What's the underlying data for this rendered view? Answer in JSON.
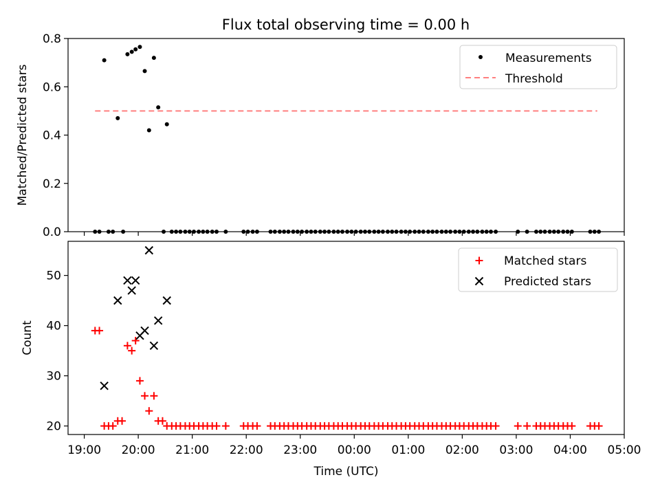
{
  "title": "Flux total observing time = 0.00 h",
  "chart_data": [
    {
      "type": "scatter",
      "ylabel": "Matched/Predicted stars",
      "xlabel": "",
      "ylim": [
        0,
        0.8
      ],
      "xlim_hours": [
        18.7,
        29.0
      ],
      "yticks": [
        {
          "v": 0.0,
          "label": "0.0"
        },
        {
          "v": 0.2,
          "label": "0.2"
        },
        {
          "v": 0.4,
          "label": "0.4"
        },
        {
          "v": 0.6,
          "label": "0.6"
        },
        {
          "v": 0.8,
          "label": "0.8"
        }
      ],
      "legend": {
        "placement": "upper right",
        "items": [
          "Measurements",
          "Threshold"
        ]
      },
      "threshold": {
        "name": "Threshold",
        "y": 0.5,
        "x_start": 19.2,
        "x_end": 28.5,
        "color": "#ff7f7f"
      },
      "series": [
        {
          "name": "Measurements",
          "color": "#000000",
          "points": [
            [
              19.37,
              0.71
            ],
            [
              19.8,
              0.735
            ],
            [
              19.88,
              0.745
            ],
            [
              19.95,
              0.755
            ],
            [
              20.03,
              0.765
            ],
            [
              20.12,
              0.665
            ],
            [
              20.29,
              0.72
            ],
            [
              19.62,
              0.47
            ],
            [
              20.37,
              0.515
            ],
            [
              20.2,
              0.42
            ],
            [
              20.53,
              0.445
            ],
            [
              19.2,
              0.0
            ],
            [
              19.28,
              0.0
            ],
            [
              19.45,
              0.0
            ],
            [
              19.53,
              0.0
            ],
            [
              19.72,
              0.0
            ],
            [
              20.47,
              0.0
            ],
            [
              20.62,
              0.0
            ],
            [
              20.7,
              0.0
            ],
            [
              20.78,
              0.0
            ],
            [
              20.87,
              0.0
            ],
            [
              20.95,
              0.0
            ],
            [
              21.03,
              0.0
            ],
            [
              21.12,
              0.0
            ],
            [
              21.2,
              0.0
            ],
            [
              21.28,
              0.0
            ],
            [
              21.37,
              0.0
            ],
            [
              21.45,
              0.0
            ],
            [
              21.62,
              0.0
            ],
            [
              21.95,
              0.0
            ],
            [
              22.03,
              0.0
            ],
            [
              22.12,
              0.0
            ],
            [
              22.2,
              0.0
            ],
            [
              22.45,
              0.0
            ],
            [
              22.53,
              0.0
            ],
            [
              22.62,
              0.0
            ],
            [
              22.7,
              0.0
            ],
            [
              22.78,
              0.0
            ],
            [
              22.87,
              0.0
            ],
            [
              22.95,
              0.0
            ],
            [
              23.03,
              0.0
            ],
            [
              23.12,
              0.0
            ],
            [
              23.2,
              0.0
            ],
            [
              23.28,
              0.0
            ],
            [
              23.37,
              0.0
            ],
            [
              23.45,
              0.0
            ],
            [
              23.53,
              0.0
            ],
            [
              23.62,
              0.0
            ],
            [
              23.7,
              0.0
            ],
            [
              23.78,
              0.0
            ],
            [
              23.87,
              0.0
            ],
            [
              23.95,
              0.0
            ],
            [
              24.03,
              0.0
            ],
            [
              24.12,
              0.0
            ],
            [
              24.2,
              0.0
            ],
            [
              24.28,
              0.0
            ],
            [
              24.37,
              0.0
            ],
            [
              24.45,
              0.0
            ],
            [
              24.53,
              0.0
            ],
            [
              24.62,
              0.0
            ],
            [
              24.7,
              0.0
            ],
            [
              24.78,
              0.0
            ],
            [
              24.87,
              0.0
            ],
            [
              24.95,
              0.0
            ],
            [
              25.03,
              0.0
            ],
            [
              25.12,
              0.0
            ],
            [
              25.2,
              0.0
            ],
            [
              25.28,
              0.0
            ],
            [
              25.37,
              0.0
            ],
            [
              25.45,
              0.0
            ],
            [
              25.53,
              0.0
            ],
            [
              25.62,
              0.0
            ],
            [
              25.7,
              0.0
            ],
            [
              25.78,
              0.0
            ],
            [
              25.87,
              0.0
            ],
            [
              25.95,
              0.0
            ],
            [
              26.03,
              0.0
            ],
            [
              26.12,
              0.0
            ],
            [
              26.2,
              0.0
            ],
            [
              26.28,
              0.0
            ],
            [
              26.37,
              0.0
            ],
            [
              26.45,
              0.0
            ],
            [
              26.53,
              0.0
            ],
            [
              26.62,
              0.0
            ],
            [
              27.03,
              0.0
            ],
            [
              27.2,
              0.0
            ],
            [
              27.37,
              0.0
            ],
            [
              27.45,
              0.0
            ],
            [
              27.53,
              0.0
            ],
            [
              27.62,
              0.0
            ],
            [
              27.7,
              0.0
            ],
            [
              27.78,
              0.0
            ],
            [
              27.87,
              0.0
            ],
            [
              27.95,
              0.0
            ],
            [
              28.03,
              0.0
            ],
            [
              28.37,
              0.0
            ],
            [
              28.45,
              0.0
            ],
            [
              28.53,
              0.0
            ]
          ]
        }
      ]
    },
    {
      "type": "scatter",
      "ylabel": "Count",
      "xlabel": "Time (UTC)",
      "ylim": [
        18.3,
        56.8
      ],
      "xlim_hours": [
        18.7,
        29.0
      ],
      "yticks": [
        {
          "v": 20,
          "label": "20"
        },
        {
          "v": 30,
          "label": "30"
        },
        {
          "v": 40,
          "label": "40"
        },
        {
          "v": 50,
          "label": "50"
        }
      ],
      "xticks": [
        {
          "v": 19,
          "label": "19:00"
        },
        {
          "v": 20,
          "label": "20:00"
        },
        {
          "v": 21,
          "label": "21:00"
        },
        {
          "v": 22,
          "label": "22:00"
        },
        {
          "v": 23,
          "label": "23:00"
        },
        {
          "v": 24,
          "label": "00:00"
        },
        {
          "v": 25,
          "label": "01:00"
        },
        {
          "v": 26,
          "label": "02:00"
        },
        {
          "v": 27,
          "label": "03:00"
        },
        {
          "v": 28,
          "label": "04:00"
        },
        {
          "v": 29,
          "label": "05:00"
        }
      ],
      "legend": {
        "placement": "upper right",
        "items": [
          "Matched stars",
          "Predicted stars"
        ]
      },
      "series": [
        {
          "name": "Matched stars",
          "marker": "plus",
          "color": "#ff0000",
          "points": [
            [
              19.2,
              39
            ],
            [
              19.28,
              39
            ],
            [
              19.37,
              20
            ],
            [
              19.45,
              20
            ],
            [
              19.53,
              20
            ],
            [
              19.62,
              21
            ],
            [
              19.7,
              21
            ],
            [
              19.8,
              36
            ],
            [
              19.88,
              35
            ],
            [
              19.95,
              37
            ],
            [
              20.03,
              29
            ],
            [
              20.12,
              26
            ],
            [
              20.2,
              23
            ],
            [
              20.29,
              26
            ],
            [
              20.37,
              21
            ],
            [
              20.45,
              21
            ],
            [
              20.53,
              20
            ],
            [
              20.62,
              20
            ],
            [
              20.7,
              20
            ],
            [
              20.78,
              20
            ],
            [
              20.87,
              20
            ],
            [
              20.95,
              20
            ],
            [
              21.03,
              20
            ],
            [
              21.12,
              20
            ],
            [
              21.2,
              20
            ],
            [
              21.28,
              20
            ],
            [
              21.37,
              20
            ],
            [
              21.45,
              20
            ],
            [
              21.62,
              20
            ],
            [
              21.95,
              20
            ],
            [
              22.03,
              20
            ],
            [
              22.12,
              20
            ],
            [
              22.2,
              20
            ],
            [
              22.45,
              20
            ],
            [
              22.53,
              20
            ],
            [
              22.62,
              20
            ],
            [
              22.7,
              20
            ],
            [
              22.78,
              20
            ],
            [
              22.87,
              20
            ],
            [
              22.95,
              20
            ],
            [
              23.03,
              20
            ],
            [
              23.12,
              20
            ],
            [
              23.2,
              20
            ],
            [
              23.28,
              20
            ],
            [
              23.37,
              20
            ],
            [
              23.45,
              20
            ],
            [
              23.53,
              20
            ],
            [
              23.62,
              20
            ],
            [
              23.7,
              20
            ],
            [
              23.78,
              20
            ],
            [
              23.87,
              20
            ],
            [
              23.95,
              20
            ],
            [
              24.03,
              20
            ],
            [
              24.12,
              20
            ],
            [
              24.2,
              20
            ],
            [
              24.28,
              20
            ],
            [
              24.37,
              20
            ],
            [
              24.45,
              20
            ],
            [
              24.53,
              20
            ],
            [
              24.62,
              20
            ],
            [
              24.7,
              20
            ],
            [
              24.78,
              20
            ],
            [
              24.87,
              20
            ],
            [
              24.95,
              20
            ],
            [
              25.03,
              20
            ],
            [
              25.12,
              20
            ],
            [
              25.2,
              20
            ],
            [
              25.28,
              20
            ],
            [
              25.37,
              20
            ],
            [
              25.45,
              20
            ],
            [
              25.53,
              20
            ],
            [
              25.62,
              20
            ],
            [
              25.7,
              20
            ],
            [
              25.78,
              20
            ],
            [
              25.87,
              20
            ],
            [
              25.95,
              20
            ],
            [
              26.03,
              20
            ],
            [
              26.12,
              20
            ],
            [
              26.2,
              20
            ],
            [
              26.28,
              20
            ],
            [
              26.37,
              20
            ],
            [
              26.45,
              20
            ],
            [
              26.53,
              20
            ],
            [
              26.62,
              20
            ],
            [
              27.03,
              20
            ],
            [
              27.2,
              20
            ],
            [
              27.37,
              20
            ],
            [
              27.45,
              20
            ],
            [
              27.53,
              20
            ],
            [
              27.62,
              20
            ],
            [
              27.7,
              20
            ],
            [
              27.78,
              20
            ],
            [
              27.87,
              20
            ],
            [
              27.95,
              20
            ],
            [
              28.03,
              20
            ],
            [
              28.37,
              20
            ],
            [
              28.45,
              20
            ],
            [
              28.53,
              20
            ]
          ]
        },
        {
          "name": "Predicted stars",
          "marker": "x",
          "color": "#000000",
          "points": [
            [
              19.37,
              28
            ],
            [
              19.62,
              45
            ],
            [
              19.8,
              49
            ],
            [
              19.88,
              47
            ],
            [
              19.95,
              49
            ],
            [
              20.03,
              38
            ],
            [
              20.12,
              39
            ],
            [
              20.2,
              55
            ],
            [
              20.29,
              36
            ],
            [
              20.37,
              41
            ],
            [
              20.53,
              45
            ]
          ]
        }
      ]
    }
  ]
}
